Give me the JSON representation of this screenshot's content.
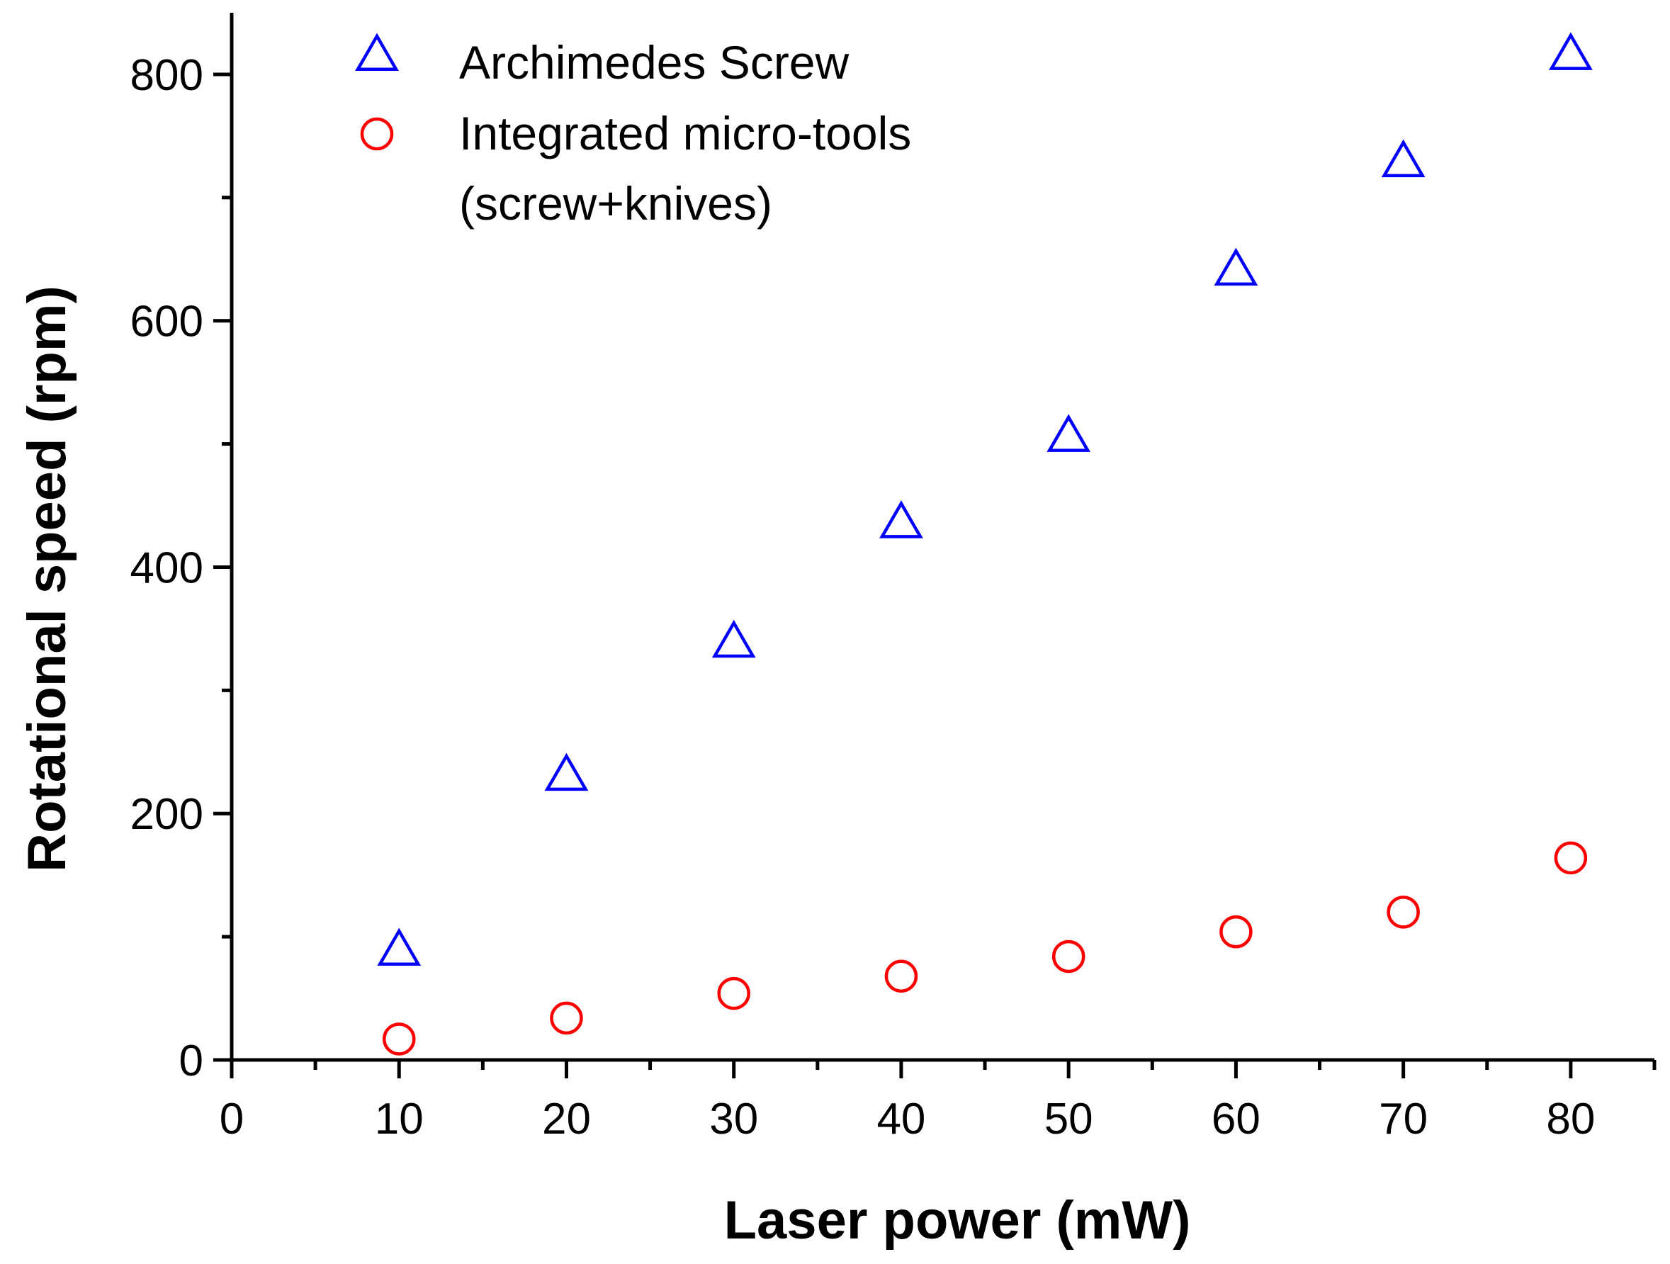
{
  "chart_data": {
    "type": "scatter",
    "title": "",
    "xlabel": "Laser power (mW)",
    "ylabel": "Rotational speed (rpm)",
    "xlim": [
      0,
      85
    ],
    "ylim": [
      0,
      850
    ],
    "x_ticks": [
      0,
      10,
      20,
      30,
      40,
      50,
      60,
      70,
      80
    ],
    "y_ticks": [
      0,
      200,
      400,
      600,
      800
    ],
    "grid": false,
    "legend_position": "top-center",
    "series": [
      {
        "name": "Archimedes Screw",
        "marker": "triangle-open",
        "color": "#0000ff",
        "x": [
          10,
          20,
          30,
          40,
          50,
          60,
          70,
          80
        ],
        "y": [
          88,
          230,
          338,
          435,
          505,
          640,
          728,
          815
        ]
      },
      {
        "name": "Integrated micro-tools",
        "name_line2": "(screw+knives)",
        "marker": "circle-open",
        "color": "#ff0000",
        "x": [
          10,
          20,
          30,
          40,
          50,
          60,
          70,
          80
        ],
        "y": [
          17,
          34,
          54,
          68,
          84,
          104,
          120,
          164
        ]
      }
    ]
  }
}
